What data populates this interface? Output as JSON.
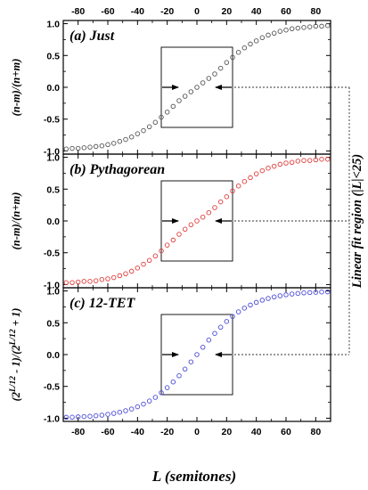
{
  "chart_data": [
    {
      "type": "scatter",
      "panel_label": "(a) Just",
      "ylabel": "(n-m)/(n+m)",
      "color": "#555555",
      "x": [
        -88,
        -84,
        -80,
        -76,
        -72,
        -68,
        -64,
        -60,
        -56,
        -52,
        -48,
        -44,
        -40,
        -36,
        -32,
        -28,
        -24,
        -20,
        -16,
        -12,
        -8,
        -4,
        0,
        4,
        8,
        12,
        16,
        20,
        24,
        28,
        32,
        36,
        40,
        44,
        48,
        52,
        56,
        60,
        64,
        68,
        72,
        76,
        80,
        84,
        88
      ],
      "y": [
        -0.97,
        -0.96,
        -0.96,
        -0.95,
        -0.94,
        -0.93,
        -0.92,
        -0.9,
        -0.88,
        -0.85,
        -0.82,
        -0.78,
        -0.73,
        -0.68,
        -0.62,
        -0.55,
        -0.47,
        -0.39,
        -0.3,
        -0.21,
        -0.14,
        -0.07,
        0.0,
        0.07,
        0.14,
        0.21,
        0.3,
        0.39,
        0.47,
        0.55,
        0.62,
        0.68,
        0.73,
        0.78,
        0.82,
        0.85,
        0.88,
        0.9,
        0.92,
        0.93,
        0.94,
        0.95,
        0.96,
        0.96,
        0.97
      ],
      "xlim": [
        -90,
        90
      ],
      "ylim": [
        -1.05,
        1.05
      ],
      "fit_box": {
        "x": [
          -24,
          24
        ],
        "y": [
          -0.63,
          0.63
        ]
      },
      "arrow_y": 0.0
    },
    {
      "type": "scatter",
      "panel_label": "(b) Pythagorean",
      "ylabel": "(n-m)/(n+m)",
      "color": "#e03c3c",
      "x": [
        -88,
        -84,
        -80,
        -76,
        -72,
        -68,
        -64,
        -60,
        -56,
        -52,
        -48,
        -44,
        -40,
        -36,
        -32,
        -28,
        -24,
        -20,
        -16,
        -12,
        -8,
        -4,
        0,
        4,
        8,
        12,
        16,
        20,
        24,
        28,
        32,
        36,
        40,
        44,
        48,
        52,
        56,
        60,
        64,
        68,
        72,
        76,
        80,
        84,
        88
      ],
      "y": [
        -0.97,
        -0.97,
        -0.96,
        -0.95,
        -0.95,
        -0.94,
        -0.92,
        -0.91,
        -0.89,
        -0.86,
        -0.83,
        -0.79,
        -0.74,
        -0.68,
        -0.62,
        -0.55,
        -0.47,
        -0.38,
        -0.3,
        -0.21,
        -0.13,
        -0.06,
        0.0,
        0.06,
        0.13,
        0.21,
        0.3,
        0.38,
        0.47,
        0.55,
        0.62,
        0.68,
        0.74,
        0.79,
        0.83,
        0.86,
        0.89,
        0.91,
        0.92,
        0.94,
        0.95,
        0.95,
        0.96,
        0.97,
        0.97
      ],
      "xlim": [
        -90,
        90
      ],
      "ylim": [
        -1.05,
        1.05
      ],
      "fit_box": {
        "x": [
          -24,
          24
        ],
        "y": [
          -0.63,
          0.63
        ]
      },
      "arrow_y": 0.0
    },
    {
      "type": "scatter",
      "panel_label": "(c) 12-TET",
      "ylabel": "(2^{L/12} - 1)/(2^{L/12} + 1)",
      "color": "#4a4ad8",
      "x": [
        -88,
        -84,
        -80,
        -76,
        -72,
        -68,
        -64,
        -60,
        -56,
        -52,
        -48,
        -44,
        -40,
        -36,
        -32,
        -28,
        -24,
        -20,
        -16,
        -12,
        -8,
        -4,
        0,
        4,
        8,
        12,
        16,
        20,
        24,
        28,
        32,
        36,
        40,
        44,
        48,
        52,
        56,
        60,
        64,
        68,
        72,
        76,
        80,
        84,
        88
      ],
      "y": [
        -0.986,
        -0.984,
        -0.979,
        -0.974,
        -0.969,
        -0.961,
        -0.952,
        -0.939,
        -0.924,
        -0.906,
        -0.882,
        -0.855,
        -0.82,
        -0.778,
        -0.73,
        -0.672,
        -0.6,
        -0.52,
        -0.43,
        -0.333,
        -0.228,
        -0.115,
        0.0,
        0.115,
        0.228,
        0.333,
        0.43,
        0.52,
        0.6,
        0.672,
        0.73,
        0.778,
        0.82,
        0.855,
        0.882,
        0.906,
        0.924,
        0.939,
        0.952,
        0.961,
        0.969,
        0.974,
        0.979,
        0.984,
        0.986
      ],
      "xlim": [
        -90,
        90
      ],
      "ylim": [
        -1.05,
        1.05
      ],
      "fit_box": {
        "x": [
          -24,
          24
        ],
        "y": [
          -0.63,
          0.63
        ]
      },
      "arrow_y": 0.0
    }
  ],
  "axes": {
    "xticks": [
      -80,
      -60,
      -40,
      -20,
      0,
      20,
      40,
      60,
      80
    ],
    "yticks": [
      -1.0,
      -0.5,
      0.0,
      0.5,
      1.0
    ],
    "ytick_labels": [
      "-1.0",
      "-0.5",
      "0.0",
      "0.5",
      "1.0"
    ],
    "xlabel": "L (semitones)"
  },
  "annotation": {
    "text": "Linear fit region (|L|<25)"
  },
  "labels": {
    "c_ylabel_base1": "(2",
    "c_ylabel_sup1": "L/12",
    "c_ylabel_mid": " - 1)/(2",
    "c_ylabel_sup2": "L/12",
    "c_ylabel_end": " + 1)"
  }
}
